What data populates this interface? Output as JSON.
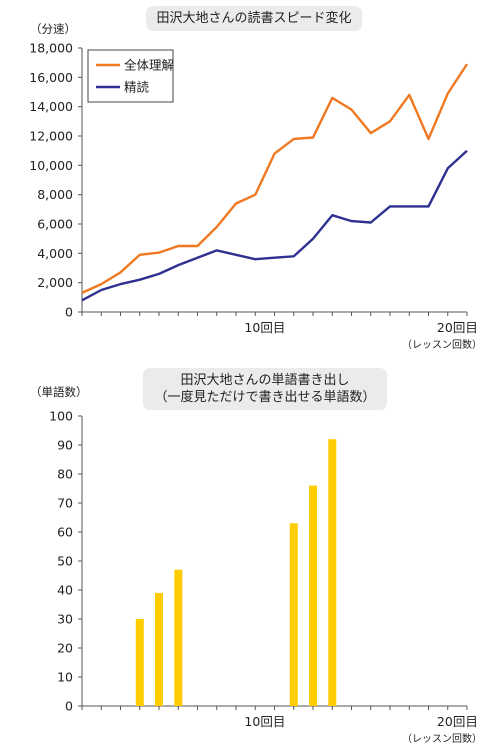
{
  "chart_data": [
    {
      "type": "line",
      "title": "田沢大地さんの読書スピード変化",
      "ylabel": "（分速）",
      "xlabel": "（レッスン回数）",
      "ylim": [
        0,
        18000
      ],
      "xlim": [
        1,
        21
      ],
      "yticks": [
        0,
        2000,
        4000,
        6000,
        8000,
        10000,
        12000,
        14000,
        16000,
        18000
      ],
      "ytick_labels": [
        "0",
        "2,000",
        "4,000",
        "6,000",
        "8,000",
        "10,000",
        "12,000",
        "14,000",
        "16,000",
        "18,000"
      ],
      "xticks": [
        10,
        20
      ],
      "xtick_labels": [
        "10回目",
        "20回目"
      ],
      "legend": "top-left",
      "grid": false,
      "x": [
        1,
        2,
        3,
        4,
        5,
        6,
        7,
        8,
        9,
        10,
        11,
        12,
        13,
        14,
        15,
        16,
        17,
        18,
        19,
        20,
        21
      ],
      "series": [
        {
          "name": "全体理解",
          "color": "#f07820",
          "values": [
            1300,
            1900,
            2700,
            3900,
            4050,
            4500,
            4500,
            5800,
            7400,
            8000,
            10800,
            11800,
            11900,
            14600,
            13800,
            12200,
            13000,
            14800,
            11800,
            14900,
            16900
          ]
        },
        {
          "name": "精読",
          "color": "#2e3192",
          "values": [
            800,
            1500,
            1900,
            2200,
            2600,
            3200,
            3700,
            4200,
            3900,
            3600,
            3700,
            3800,
            5000,
            6600,
            6200,
            6100,
            7200,
            7200,
            7200,
            9800,
            11000
          ]
        }
      ]
    },
    {
      "type": "bar",
      "title_line1": "田沢大地さんの単語書き出し",
      "title_line2": "（一度見ただけで書き出せる単語数）",
      "ylabel": "（単語数）",
      "xlabel": "（レッスン回数）",
      "ylim": [
        0,
        100
      ],
      "xlim": [
        1,
        21
      ],
      "yticks": [
        0,
        10,
        20,
        30,
        40,
        50,
        60,
        70,
        80,
        90,
        100
      ],
      "ytick_labels": [
        "0",
        "10",
        "20",
        "30",
        "40",
        "50",
        "60",
        "70",
        "80",
        "90",
        "100"
      ],
      "xticks": [
        10,
        20
      ],
      "xtick_labels": [
        "10回目",
        "20回目"
      ],
      "grid": false,
      "color": "#ffcc00",
      "bars": [
        {
          "x": 4,
          "value": 30
        },
        {
          "x": 5,
          "value": 39
        },
        {
          "x": 6,
          "value": 47
        },
        {
          "x": 12,
          "value": 63
        },
        {
          "x": 13,
          "value": 76
        },
        {
          "x": 14,
          "value": 92
        }
      ]
    }
  ]
}
